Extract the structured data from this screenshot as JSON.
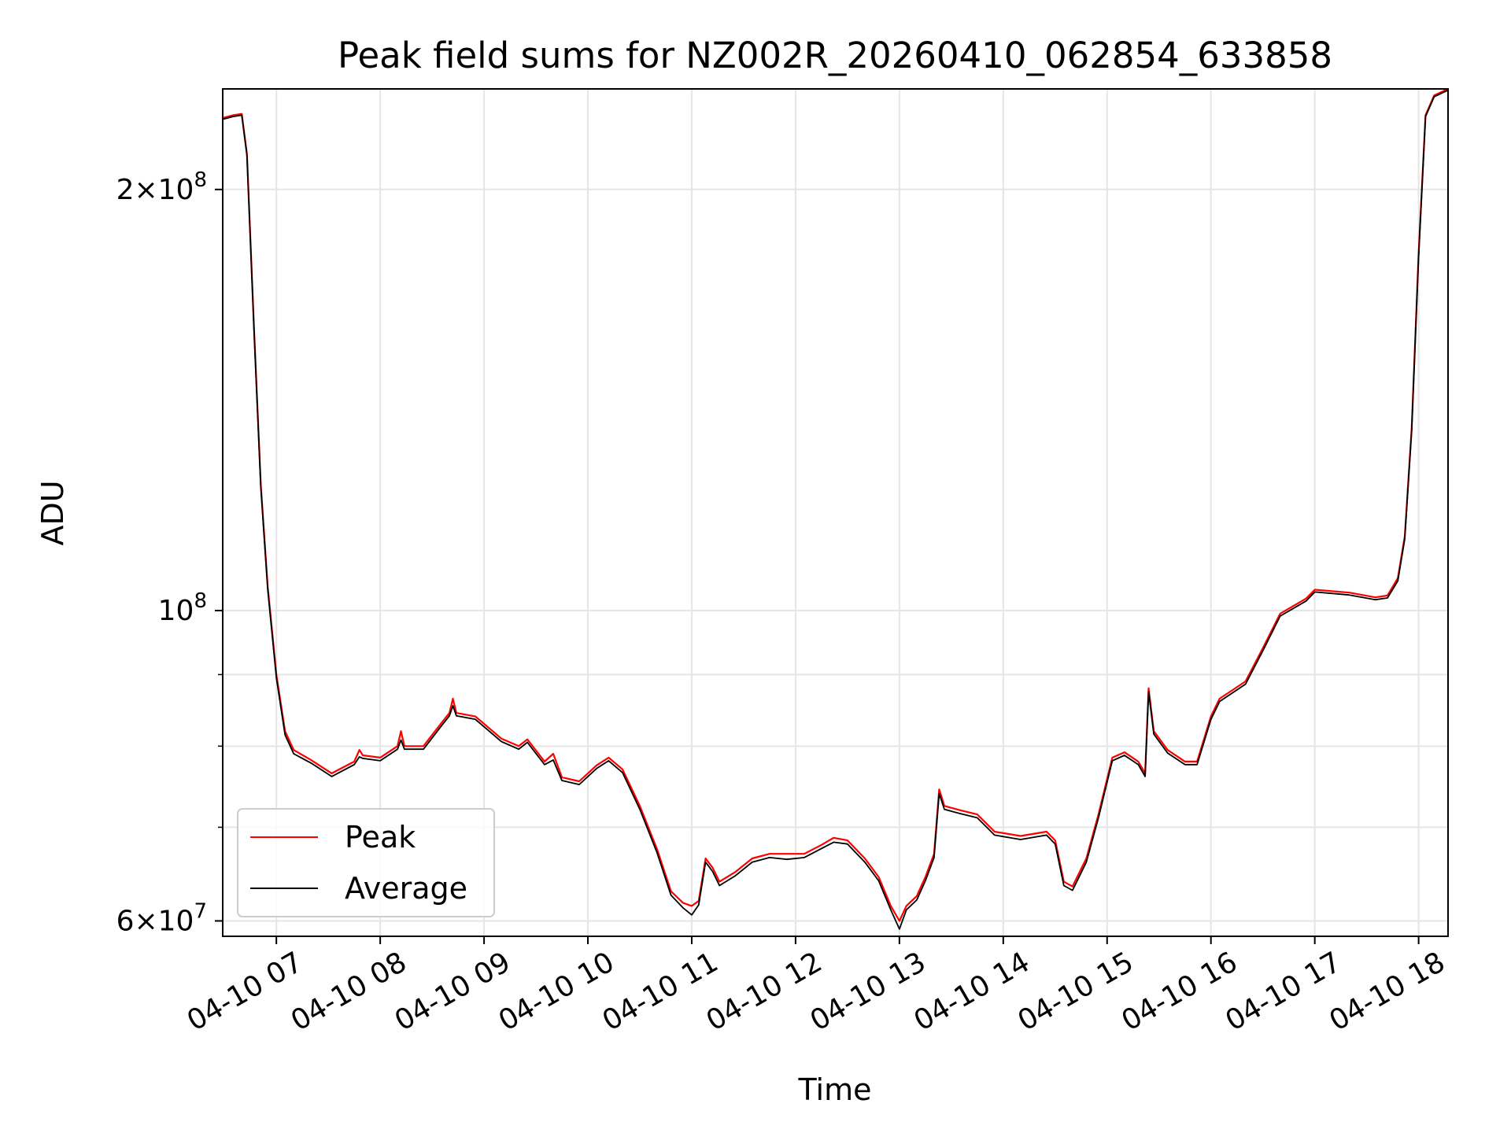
{
  "chart_data": {
    "type": "line",
    "title": "Peak field sums for NZ002R_20260410_062854_633858",
    "xlabel": "Time",
    "ylabel": "ADU",
    "yscale": "log",
    "ylim": [
      58500000,
      236000000
    ],
    "xlim": [
      "2026-04-10 06:29",
      "2026-04-10 18:17"
    ],
    "grid": true,
    "legend_position": "lower-left",
    "x_ticks": [
      {
        "t": "2026-04-10 07:00",
        "label": "04-10 07"
      },
      {
        "t": "2026-04-10 08:00",
        "label": "04-10 08"
      },
      {
        "t": "2026-04-10 09:00",
        "label": "04-10 09"
      },
      {
        "t": "2026-04-10 10:00",
        "label": "04-10 10"
      },
      {
        "t": "2026-04-10 11:00",
        "label": "04-10 11"
      },
      {
        "t": "2026-04-10 12:00",
        "label": "04-10 12"
      },
      {
        "t": "2026-04-10 13:00",
        "label": "04-10 13"
      },
      {
        "t": "2026-04-10 14:00",
        "label": "04-10 14"
      },
      {
        "t": "2026-04-10 15:00",
        "label": "04-10 15"
      },
      {
        "t": "2026-04-10 16:00",
        "label": "04-10 16"
      },
      {
        "t": "2026-04-10 17:00",
        "label": "04-10 17"
      },
      {
        "t": "2026-04-10 18:00",
        "label": "04-10 18"
      }
    ],
    "y_major_ticks": [
      {
        "v": 60000000,
        "mant": "6",
        "exp": "7"
      },
      {
        "v": 100000000,
        "mant": "",
        "exp": "8"
      },
      {
        "v": 200000000,
        "mant": "2",
        "exp": "8"
      }
    ],
    "y_minor_gridlines": [
      70000000,
      80000000,
      90000000
    ],
    "series": [
      {
        "name": "Peak",
        "color": "#ff0000",
        "points": [
          [
            "2026-04-10 06:29",
            225000000
          ],
          [
            "2026-04-10 06:35",
            226000000
          ],
          [
            "2026-04-10 06:40",
            226500000
          ],
          [
            "2026-04-10 06:43",
            212000000
          ],
          [
            "2026-04-10 06:47",
            160000000
          ],
          [
            "2026-04-10 06:51",
            123000000
          ],
          [
            "2026-04-10 06:55",
            104000000
          ],
          [
            "2026-04-10 07:00",
            90000000
          ],
          [
            "2026-04-10 07:05",
            82000000
          ],
          [
            "2026-04-10 07:10",
            79500000
          ],
          [
            "2026-04-10 07:20",
            78200000
          ],
          [
            "2026-04-10 07:32",
            76500000
          ],
          [
            "2026-04-10 07:45",
            78000000
          ],
          [
            "2026-04-10 07:48",
            79500000
          ],
          [
            "2026-04-10 07:50",
            78800000
          ],
          [
            "2026-04-10 08:00",
            78500000
          ],
          [
            "2026-04-10 08:10",
            80000000
          ],
          [
            "2026-04-10 08:12",
            82000000
          ],
          [
            "2026-04-10 08:14",
            80000000
          ],
          [
            "2026-04-10 08:25",
            80000000
          ],
          [
            "2026-04-10 08:35",
            83000000
          ],
          [
            "2026-04-10 08:40",
            84500000
          ],
          [
            "2026-04-10 08:42",
            86500000
          ],
          [
            "2026-04-10 08:44",
            84500000
          ],
          [
            "2026-04-10 08:55",
            84000000
          ],
          [
            "2026-04-10 09:10",
            81000000
          ],
          [
            "2026-04-10 09:20",
            80000000
          ],
          [
            "2026-04-10 09:25",
            80900000
          ],
          [
            "2026-04-10 09:35",
            78000000
          ],
          [
            "2026-04-10 09:40",
            79000000
          ],
          [
            "2026-04-10 09:45",
            76000000
          ],
          [
            "2026-04-10 09:55",
            75500000
          ],
          [
            "2026-04-10 10:05",
            77500000
          ],
          [
            "2026-04-10 10:12",
            78500000
          ],
          [
            "2026-04-10 10:20",
            77000000
          ],
          [
            "2026-04-10 10:30",
            72500000
          ],
          [
            "2026-04-10 10:40",
            67500000
          ],
          [
            "2026-04-10 10:48",
            63000000
          ],
          [
            "2026-04-10 10:55",
            61800000
          ],
          [
            "2026-04-10 11:00",
            61500000
          ],
          [
            "2026-04-10 11:04",
            62000000
          ],
          [
            "2026-04-10 11:08",
            66500000
          ],
          [
            "2026-04-10 11:12",
            65500000
          ],
          [
            "2026-04-10 11:16",
            64000000
          ],
          [
            "2026-04-10 11:25",
            65000000
          ],
          [
            "2026-04-10 11:35",
            66500000
          ],
          [
            "2026-04-10 11:45",
            67000000
          ],
          [
            "2026-04-10 11:55",
            67000000
          ],
          [
            "2026-04-10 12:05",
            67000000
          ],
          [
            "2026-04-10 12:15",
            68000000
          ],
          [
            "2026-04-10 12:22",
            68800000
          ],
          [
            "2026-04-10 12:30",
            68500000
          ],
          [
            "2026-04-10 12:40",
            66500000
          ],
          [
            "2026-04-10 12:48",
            64500000
          ],
          [
            "2026-04-10 12:55",
            61500000
          ],
          [
            "2026-04-10 13:00",
            60000000
          ],
          [
            "2026-04-10 13:04",
            61500000
          ],
          [
            "2026-04-10 13:10",
            62500000
          ],
          [
            "2026-04-10 13:15",
            64500000
          ],
          [
            "2026-04-10 13:20",
            67000000
          ],
          [
            "2026-04-10 13:23",
            74500000
          ],
          [
            "2026-04-10 13:26",
            72500000
          ],
          [
            "2026-04-10 13:35",
            72000000
          ],
          [
            "2026-04-10 13:45",
            71500000
          ],
          [
            "2026-04-10 13:55",
            69500000
          ],
          [
            "2026-04-10 14:10",
            69000000
          ],
          [
            "2026-04-10 14:25",
            69500000
          ],
          [
            "2026-04-10 14:30",
            68500000
          ],
          [
            "2026-04-10 14:35",
            64000000
          ],
          [
            "2026-04-10 14:40",
            63500000
          ],
          [
            "2026-04-10 14:48",
            66500000
          ],
          [
            "2026-04-10 14:55",
            71500000
          ],
          [
            "2026-04-10 15:03",
            78500000
          ],
          [
            "2026-04-10 15:10",
            79200000
          ],
          [
            "2026-04-10 15:18",
            78000000
          ],
          [
            "2026-04-10 15:22",
            76500000
          ],
          [
            "2026-04-10 15:24",
            88000000
          ],
          [
            "2026-04-10 15:27",
            82000000
          ],
          [
            "2026-04-10 15:35",
            79500000
          ],
          [
            "2026-04-10 15:45",
            78000000
          ],
          [
            "2026-04-10 15:52",
            78000000
          ],
          [
            "2026-04-10 16:00",
            84000000
          ],
          [
            "2026-04-10 16:05",
            86500000
          ],
          [
            "2026-04-10 16:20",
            89000000
          ],
          [
            "2026-04-10 16:30",
            94000000
          ],
          [
            "2026-04-10 16:40",
            99500000
          ],
          [
            "2026-04-10 16:55",
            102000000
          ],
          [
            "2026-04-10 17:00",
            103500000
          ],
          [
            "2026-04-10 17:20",
            103000000
          ],
          [
            "2026-04-10 17:35",
            102200000
          ],
          [
            "2026-04-10 17:42",
            102500000
          ],
          [
            "2026-04-10 17:48",
            105500000
          ],
          [
            "2026-04-10 17:52",
            113000000
          ],
          [
            "2026-04-10 17:56",
            135000000
          ],
          [
            "2026-04-10 18:00",
            180000000
          ],
          [
            "2026-04-10 18:04",
            226000000
          ],
          [
            "2026-04-10 18:09",
            233500000
          ],
          [
            "2026-04-10 18:17",
            236000000
          ]
        ]
      },
      {
        "name": "Average",
        "color": "#000000",
        "points": [
          [
            "2026-04-10 06:29",
            224500000
          ],
          [
            "2026-04-10 06:35",
            225500000
          ],
          [
            "2026-04-10 06:40",
            226000000
          ],
          [
            "2026-04-10 06:43",
            211500000
          ],
          [
            "2026-04-10 06:47",
            159500000
          ],
          [
            "2026-04-10 06:51",
            122500000
          ],
          [
            "2026-04-10 06:55",
            103500000
          ],
          [
            "2026-04-10 07:00",
            89500000
          ],
          [
            "2026-04-10 07:05",
            81500000
          ],
          [
            "2026-04-10 07:10",
            79000000
          ],
          [
            "2026-04-10 07:20",
            77800000
          ],
          [
            "2026-04-10 07:32",
            76100000
          ],
          [
            "2026-04-10 07:45",
            77600000
          ],
          [
            "2026-04-10 07:48",
            78600000
          ],
          [
            "2026-04-10 07:50",
            78400000
          ],
          [
            "2026-04-10 08:00",
            78100000
          ],
          [
            "2026-04-10 08:10",
            79600000
          ],
          [
            "2026-04-10 08:12",
            80800000
          ],
          [
            "2026-04-10 08:14",
            79600000
          ],
          [
            "2026-04-10 08:25",
            79600000
          ],
          [
            "2026-04-10 08:35",
            82600000
          ],
          [
            "2026-04-10 08:40",
            84100000
          ],
          [
            "2026-04-10 08:42",
            85500000
          ],
          [
            "2026-04-10 08:44",
            84100000
          ],
          [
            "2026-04-10 08:55",
            83600000
          ],
          [
            "2026-04-10 09:10",
            80600000
          ],
          [
            "2026-04-10 09:20",
            79600000
          ],
          [
            "2026-04-10 09:25",
            80500000
          ],
          [
            "2026-04-10 09:35",
            77600000
          ],
          [
            "2026-04-10 09:40",
            78200000
          ],
          [
            "2026-04-10 09:45",
            75600000
          ],
          [
            "2026-04-10 09:55",
            75100000
          ],
          [
            "2026-04-10 10:05",
            77100000
          ],
          [
            "2026-04-10 10:12",
            78100000
          ],
          [
            "2026-04-10 10:20",
            76600000
          ],
          [
            "2026-04-10 10:30",
            72100000
          ],
          [
            "2026-04-10 10:40",
            67100000
          ],
          [
            "2026-04-10 10:48",
            62600000
          ],
          [
            "2026-04-10 10:55",
            61300000
          ],
          [
            "2026-04-10 11:00",
            60600000
          ],
          [
            "2026-04-10 11:04",
            61600000
          ],
          [
            "2026-04-10 11:08",
            66100000
          ],
          [
            "2026-04-10 11:12",
            65100000
          ],
          [
            "2026-04-10 11:16",
            63600000
          ],
          [
            "2026-04-10 11:25",
            64600000
          ],
          [
            "2026-04-10 11:35",
            66100000
          ],
          [
            "2026-04-10 11:45",
            66600000
          ],
          [
            "2026-04-10 11:55",
            66400000
          ],
          [
            "2026-04-10 12:05",
            66600000
          ],
          [
            "2026-04-10 12:15",
            67600000
          ],
          [
            "2026-04-10 12:22",
            68300000
          ],
          [
            "2026-04-10 12:30",
            68100000
          ],
          [
            "2026-04-10 12:40",
            66100000
          ],
          [
            "2026-04-10 12:48",
            64100000
          ],
          [
            "2026-04-10 12:55",
            61100000
          ],
          [
            "2026-04-10 13:00",
            59200000
          ],
          [
            "2026-04-10 13:04",
            61100000
          ],
          [
            "2026-04-10 13:10",
            62100000
          ],
          [
            "2026-04-10 13:15",
            64100000
          ],
          [
            "2026-04-10 13:20",
            66600000
          ],
          [
            "2026-04-10 13:23",
            74000000
          ],
          [
            "2026-04-10 13:26",
            72100000
          ],
          [
            "2026-04-10 13:35",
            71600000
          ],
          [
            "2026-04-10 13:45",
            71100000
          ],
          [
            "2026-04-10 13:55",
            69100000
          ],
          [
            "2026-04-10 14:10",
            68600000
          ],
          [
            "2026-04-10 14:25",
            69100000
          ],
          [
            "2026-04-10 14:30",
            68100000
          ],
          [
            "2026-04-10 14:35",
            63600000
          ],
          [
            "2026-04-10 14:40",
            63100000
          ],
          [
            "2026-04-10 14:48",
            66100000
          ],
          [
            "2026-04-10 14:55",
            71100000
          ],
          [
            "2026-04-10 15:03",
            78100000
          ],
          [
            "2026-04-10 15:10",
            78800000
          ],
          [
            "2026-04-10 15:18",
            77600000
          ],
          [
            "2026-04-10 15:22",
            76100000
          ],
          [
            "2026-04-10 15:24",
            87500000
          ],
          [
            "2026-04-10 15:27",
            81600000
          ],
          [
            "2026-04-10 15:35",
            79100000
          ],
          [
            "2026-04-10 15:45",
            77600000
          ],
          [
            "2026-04-10 15:52",
            77600000
          ],
          [
            "2026-04-10 16:00",
            83600000
          ],
          [
            "2026-04-10 16:05",
            86100000
          ],
          [
            "2026-04-10 16:20",
            88600000
          ],
          [
            "2026-04-10 16:30",
            93600000
          ],
          [
            "2026-04-10 16:40",
            99100000
          ],
          [
            "2026-04-10 16:55",
            101600000
          ],
          [
            "2026-04-10 17:00",
            103100000
          ],
          [
            "2026-04-10 17:20",
            102600000
          ],
          [
            "2026-04-10 17:35",
            101800000
          ],
          [
            "2026-04-10 17:42",
            102100000
          ],
          [
            "2026-04-10 17:48",
            105000000
          ],
          [
            "2026-04-10 17:52",
            112500000
          ],
          [
            "2026-04-10 17:56",
            134500000
          ],
          [
            "2026-04-10 18:00",
            179000000
          ],
          [
            "2026-04-10 18:04",
            225500000
          ],
          [
            "2026-04-10 18:09",
            233000000
          ],
          [
            "2026-04-10 18:17",
            235500000
          ]
        ]
      }
    ]
  }
}
